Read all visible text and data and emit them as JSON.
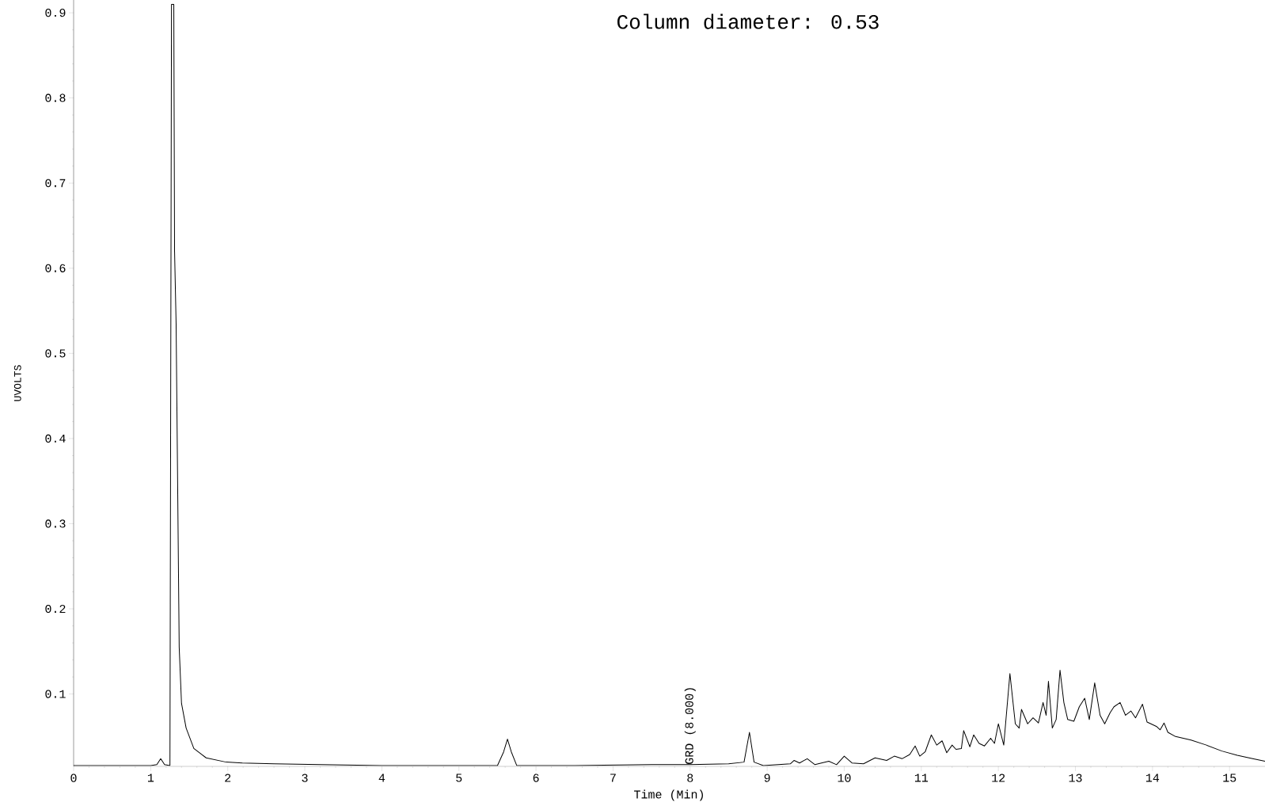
{
  "chart_data": {
    "type": "line",
    "title": "Column diameter: 0.53",
    "xlabel": "Time (Min)",
    "ylabel": "UVOLTS",
    "x": [
      0,
      0.5,
      1.0,
      1.08,
      1.13,
      1.18,
      1.25,
      1.27,
      1.3,
      1.31,
      1.33,
      1.35,
      1.37,
      1.4,
      1.46,
      1.56,
      1.72,
      1.98,
      2.19,
      2.6,
      3.2,
      4.0,
      5.0,
      5.5,
      5.58,
      5.63,
      5.68,
      5.75,
      6.5,
      7.5,
      8.0,
      8.5,
      8.7,
      8.77,
      8.83,
      8.95,
      9.3,
      9.35,
      9.42,
      9.52,
      9.62,
      9.8,
      9.9,
      10.0,
      10.1,
      10.25,
      10.4,
      10.55,
      10.65,
      10.75,
      10.85,
      10.92,
      10.98,
      11.05,
      11.13,
      11.2,
      11.27,
      11.33,
      11.4,
      11.45,
      11.52,
      11.55,
      11.63,
      11.68,
      11.75,
      11.82,
      11.9,
      11.95,
      12.0,
      12.07,
      12.15,
      12.22,
      12.27,
      12.3,
      12.38,
      12.45,
      12.52,
      12.58,
      12.62,
      12.65,
      12.7,
      12.75,
      12.8,
      12.85,
      12.9,
      12.98,
      13.05,
      13.12,
      13.18,
      13.25,
      13.32,
      13.38,
      13.45,
      13.5,
      13.58,
      13.65,
      13.72,
      13.78,
      13.87,
      13.93,
      14.05,
      14.1,
      14.15,
      14.2,
      14.3,
      14.5,
      14.7,
      14.9,
      15.1,
      15.3,
      15.46
    ],
    "series": [
      {
        "color": "#000000",
        "values": [
          0.016,
          0.016,
          0.016,
          0.017,
          0.024,
          0.017,
          0.016,
          0.91,
          0.91,
          0.62,
          0.535,
          0.345,
          0.155,
          0.089,
          0.06,
          0.036,
          0.025,
          0.02,
          0.019,
          0.018,
          0.017,
          0.016,
          0.016,
          0.016,
          0.032,
          0.047,
          0.032,
          0.016,
          0.016,
          0.017,
          0.017,
          0.018,
          0.02,
          0.055,
          0.02,
          0.016,
          0.018,
          0.022,
          0.019,
          0.024,
          0.017,
          0.021,
          0.017,
          0.027,
          0.019,
          0.018,
          0.025,
          0.022,
          0.027,
          0.024,
          0.029,
          0.039,
          0.027,
          0.032,
          0.052,
          0.04,
          0.045,
          0.031,
          0.04,
          0.035,
          0.036,
          0.057,
          0.038,
          0.052,
          0.042,
          0.039,
          0.048,
          0.042,
          0.065,
          0.04,
          0.124,
          0.065,
          0.06,
          0.082,
          0.065,
          0.072,
          0.066,
          0.09,
          0.075,
          0.115,
          0.06,
          0.07,
          0.128,
          0.09,
          0.07,
          0.068,
          0.085,
          0.095,
          0.07,
          0.113,
          0.075,
          0.065,
          0.078,
          0.085,
          0.09,
          0.075,
          0.08,
          0.072,
          0.088,
          0.067,
          0.062,
          0.058,
          0.066,
          0.055,
          0.05,
          0.046,
          0.04,
          0.033,
          0.028,
          0.024,
          0.021
        ]
      }
    ],
    "xlim": [
      0,
      15.46
    ],
    "ylim": [
      0.015,
      0.915
    ],
    "xticks": [
      0,
      1,
      2,
      3,
      4,
      5,
      6,
      7,
      8,
      9,
      10,
      11,
      12,
      13,
      14,
      15
    ],
    "yticks": [
      0.1,
      0.2,
      0.3,
      0.4,
      0.5,
      0.6,
      0.7,
      0.8,
      0.9
    ],
    "annotations": [
      {
        "text": "GRD (8.000)",
        "x": 8,
        "y": 0.016
      }
    ],
    "marker": "none",
    "line_style": "solid"
  }
}
